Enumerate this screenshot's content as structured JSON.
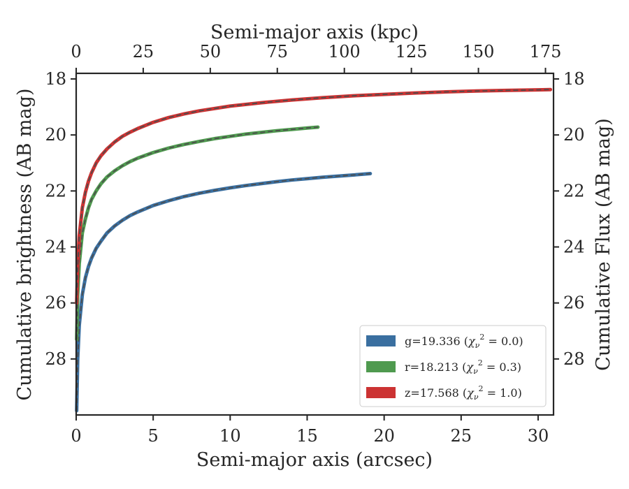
{
  "chart_data": {
    "type": "line",
    "xlabel": "Semi-major axis (arcsec)",
    "ylabel": "Cumulative brightness (AB mag)",
    "x2label": "Semi-major axis (kpc)",
    "y2label": "Cumulative Flux (AB mag)",
    "xlim": [
      0,
      31
    ],
    "ylim": [
      30,
      17.8
    ],
    "x2lim": [
      0,
      178
    ],
    "y_inverted": true,
    "xticks": [
      0,
      5,
      10,
      15,
      20,
      25,
      30
    ],
    "yticks": [
      18,
      20,
      22,
      24,
      26,
      28
    ],
    "x2ticks": [
      0,
      25,
      50,
      75,
      100,
      125,
      150,
      175
    ],
    "xtick_labels": [
      "0",
      "5",
      "10",
      "15",
      "20",
      "25",
      "30"
    ],
    "ytick_labels": [
      "18",
      "20",
      "22",
      "24",
      "26",
      "28"
    ],
    "x2tick_labels": [
      "0",
      "25",
      "50",
      "75",
      "100",
      "125",
      "150",
      "175"
    ],
    "y2tick_labels": [
      "18",
      "20",
      "22",
      "24",
      "26",
      "28"
    ],
    "grid": false,
    "legend_position": "lower-right",
    "series": [
      {
        "name": "g=19.336",
        "chi2": "0.0",
        "color": "#3a6fa0",
        "x": [
          0.03,
          0.1,
          0.2,
          0.4,
          0.6,
          0.8,
          1.0,
          1.3,
          1.6,
          2.0,
          2.5,
          3.0,
          3.5,
          4.0,
          5.0,
          6.0,
          7.0,
          8.0,
          9.0,
          10.0,
          11.0,
          12.0,
          13.0,
          14.0,
          15.0,
          16.0,
          17.0,
          18.0,
          19.1
        ],
        "y": [
          29.85,
          28.0,
          26.8,
          25.7,
          25.1,
          24.7,
          24.4,
          24.05,
          23.8,
          23.5,
          23.25,
          23.05,
          22.88,
          22.75,
          22.52,
          22.35,
          22.2,
          22.08,
          21.98,
          21.89,
          21.81,
          21.74,
          21.67,
          21.61,
          21.56,
          21.51,
          21.47,
          21.43,
          21.38
        ]
      },
      {
        "name": "r=18.213",
        "chi2": "0.3",
        "color": "#4f9a4f",
        "x": [
          0.03,
          0.1,
          0.2,
          0.4,
          0.6,
          0.8,
          1.0,
          1.3,
          1.6,
          2.0,
          2.5,
          3.0,
          3.5,
          4.0,
          5.0,
          6.0,
          7.0,
          8.0,
          9.0,
          10.0,
          11.0,
          12.0,
          13.0,
          14.0,
          15.0,
          15.7
        ],
        "y": [
          27.3,
          25.7,
          24.6,
          23.5,
          23.0,
          22.6,
          22.3,
          22.0,
          21.75,
          21.5,
          21.28,
          21.1,
          20.95,
          20.83,
          20.63,
          20.47,
          20.34,
          20.23,
          20.13,
          20.05,
          19.97,
          19.91,
          19.85,
          19.8,
          19.75,
          19.72
        ]
      },
      {
        "name": "z=17.568",
        "chi2": "1.0",
        "color": "#cc3333",
        "x": [
          0.03,
          0.1,
          0.2,
          0.4,
          0.6,
          0.8,
          1.0,
          1.3,
          1.6,
          2.0,
          2.5,
          3.0,
          3.5,
          4.0,
          5.0,
          6.0,
          7.0,
          8.0,
          10.0,
          12.0,
          14.0,
          16.0,
          18.0,
          20.0,
          22.0,
          24.0,
          26.0,
          28.0,
          30.0,
          30.8
        ],
        "y": [
          26.0,
          24.7,
          23.6,
          22.6,
          22.05,
          21.65,
          21.35,
          21.0,
          20.75,
          20.5,
          20.25,
          20.05,
          19.9,
          19.77,
          19.55,
          19.38,
          19.25,
          19.14,
          18.97,
          18.85,
          18.75,
          18.67,
          18.6,
          18.55,
          18.5,
          18.46,
          18.43,
          18.41,
          18.39,
          18.38
        ]
      }
    ]
  }
}
